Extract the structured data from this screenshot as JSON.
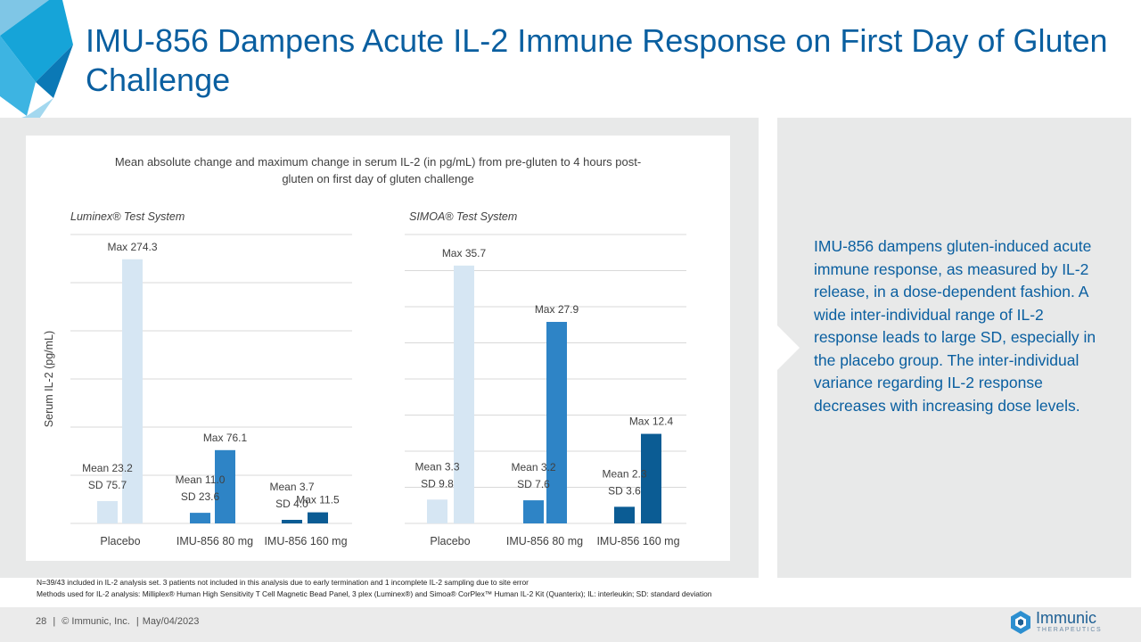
{
  "slide_title": "IMU-856 Dampens Acute IL-2 Immune Response on First Day of Gluten Challenge",
  "chart_title": "Mean absolute change and maximum change in serum IL-2 (in pg/mL) from pre-gluten to 4 hours post-gluten on first day of gluten challenge",
  "chart_data": [
    {
      "type": "bar",
      "panel_title": "Luminex® Test System",
      "ylabel": "Serum IL-2 (pg/mL)",
      "ylim": [
        0,
        300
      ],
      "gridlines": [
        0,
        50,
        100,
        150,
        200,
        250,
        300
      ],
      "categories": [
        "Placebo",
        "IMU-856 80 mg",
        "IMU-856 160 mg"
      ],
      "series": [
        {
          "name": "Mean",
          "values": [
            23.2,
            11.0,
            3.7
          ]
        },
        {
          "name": "Max",
          "values": [
            274.3,
            76.1,
            11.5
          ]
        }
      ],
      "mean_labels": [
        "Mean 23.2",
        "Mean 11.0",
        "Mean 3.7"
      ],
      "sd_labels": [
        "SD 75.7",
        "SD 23.6",
        "SD 4.0"
      ],
      "max_labels": [
        "Max 274.3",
        "Max 76.1",
        "Max 11.5"
      ],
      "colors": {
        "mean": [
          "#d6e6f3",
          "#2e84c6",
          "#0b5c94"
        ],
        "max": [
          "#d6e6f3",
          "#2e84c6",
          "#0b5c94"
        ]
      }
    },
    {
      "type": "bar",
      "panel_title": "SIMOA® Test System",
      "ylim": [
        0,
        40
      ],
      "gridlines": [
        0,
        5,
        10,
        15,
        20,
        25,
        30,
        35,
        40
      ],
      "categories": [
        "Placebo",
        "IMU-856 80 mg",
        "IMU-856 160 mg"
      ],
      "series": [
        {
          "name": "Mean",
          "values": [
            3.3,
            3.2,
            2.3
          ]
        },
        {
          "name": "Max",
          "values": [
            35.7,
            27.9,
            12.4
          ]
        }
      ],
      "mean_labels": [
        "Mean 3.3",
        "Mean 3.2",
        "Mean 2.3"
      ],
      "sd_labels": [
        "SD 9.8",
        "SD 7.6",
        "SD 3.6"
      ],
      "max_labels": [
        "Max 35.7",
        "Max 27.9",
        "Max 12.4"
      ],
      "colors": {
        "mean": [
          "#d6e6f3",
          "#2e84c6",
          "#0b5c94"
        ],
        "max": [
          "#d6e6f3",
          "#2e84c6",
          "#0b5c94"
        ]
      }
    }
  ],
  "summary": "IMU-856 dampens gluten-induced acute immune response, as measured by IL-2 release, in a dose-dependent fashion. A wide inter-individual range of IL-2 response leads to large SD, especially in the placebo group. The inter-individual variance regarding IL-2 response decreases with increasing dose levels.",
  "footnotes": {
    "line1": "N=39/43 included in IL-2 analysis set. 3 patients not included in this analysis due to early termination and 1 incomplete IL-2 sampling due to site error",
    "line2": "Methods used for IL-2 analysis: Milliplex® Human High Sensitivity T Cell Magnetic Bead Panel, 3 plex (Luminex®) and Simoa® CorPlex™ Human IL-2 Kit (Quanterix); IL: interleukin; SD: standard deviation"
  },
  "footer": {
    "page": "28",
    "sep1": "|",
    "company": "© Immunic, Inc.",
    "sep2": "|",
    "date": "May/04/2023"
  },
  "logo": {
    "name": "Immunic",
    "sub": "THERAPEUTICS"
  },
  "colors": {
    "title": "#0a5fa0",
    "panel_bg": "#e8e9e9"
  }
}
